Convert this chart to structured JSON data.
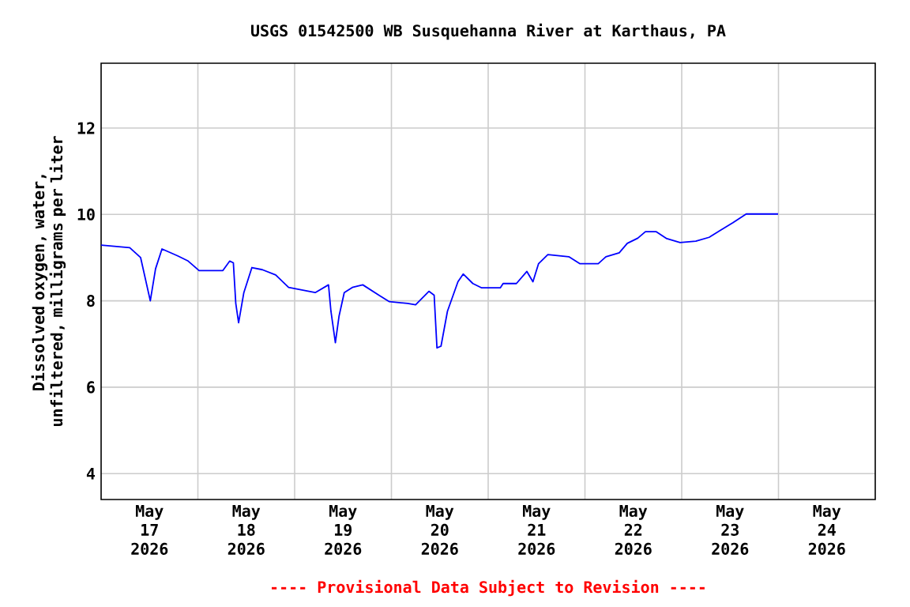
{
  "chart_data": {
    "type": "line",
    "title": "USGS 01542500 WB Susquehanna River at Karthaus, PA",
    "ylabel": "Dissolved oxygen, water, unfiltered, milligrams per liter",
    "annotations": [
      "---- Provisional Data Subject to Revision ----"
    ],
    "x": [
      "2026-05-17T00:00",
      "2026-05-17T07:06",
      "2026-05-17T09:48",
      "2026-05-17T12:12",
      "2026-05-17T13:30",
      "2026-05-17T15:06",
      "2026-05-17T19:00",
      "2026-05-17T21:36",
      "2026-05-18T00:18",
      "2026-05-18T06:12",
      "2026-05-18T07:54",
      "2026-05-18T08:48",
      "2026-05-18T09:24",
      "2026-05-18T10:06",
      "2026-05-18T11:24",
      "2026-05-18T13:24",
      "2026-05-18T16:00",
      "2026-05-18T19:18",
      "2026-05-18T22:30",
      "2026-05-19T05:06",
      "2026-05-19T08:24",
      "2026-05-19T09:00",
      "2026-05-19T10:06",
      "2026-05-19T11:00",
      "2026-05-19T12:18",
      "2026-05-19T14:18",
      "2026-05-19T16:54",
      "2026-05-19T20:54",
      "2026-05-19T23:30",
      "2026-05-20T04:00",
      "2026-05-20T06:00",
      "2026-05-20T09:18",
      "2026-05-20T10:36",
      "2026-05-20T11:18",
      "2026-05-20T12:18",
      "2026-05-20T13:54",
      "2026-05-20T16:30",
      "2026-05-20T17:48",
      "2026-05-20T20:12",
      "2026-05-20T22:24",
      "2026-05-21T03:00",
      "2026-05-21T03:42",
      "2026-05-21T07:00",
      "2026-05-21T09:36",
      "2026-05-21T11:06",
      "2026-05-21T12:30",
      "2026-05-21T14:48",
      "2026-05-21T20:00",
      "2026-05-21T22:42",
      "2026-05-22T03:18",
      "2026-05-22T05:12",
      "2026-05-22T08:30",
      "2026-05-22T10:30",
      "2026-05-22T13:06",
      "2026-05-22T15:00",
      "2026-05-22T17:42",
      "2026-05-22T20:18",
      "2026-05-22T23:36",
      "2026-05-23T03:30",
      "2026-05-23T06:48",
      "2026-05-23T09:24",
      "2026-05-23T12:42",
      "2026-05-23T16:00",
      "2026-05-23T23:54"
    ],
    "values": [
      9.29,
      9.23,
      9.0,
      8.0,
      8.74,
      9.2,
      9.04,
      8.92,
      8.7,
      8.7,
      8.92,
      8.88,
      7.94,
      7.49,
      8.19,
      8.77,
      8.72,
      8.6,
      8.31,
      8.19,
      8.37,
      7.76,
      7.03,
      7.64,
      8.19,
      8.31,
      8.37,
      8.13,
      7.98,
      7.94,
      7.91,
      8.22,
      8.13,
      6.91,
      6.95,
      7.76,
      8.44,
      8.62,
      8.4,
      8.3,
      8.3,
      8.4,
      8.4,
      8.68,
      8.44,
      8.86,
      9.07,
      9.02,
      8.86,
      8.86,
      9.02,
      9.11,
      9.33,
      9.45,
      9.6,
      9.6,
      9.44,
      9.35,
      9.38,
      9.47,
      9.62,
      9.81,
      10.01,
      10.01
    ],
    "color": "#0000ff",
    "xlim": [
      "2026-05-17T00:00",
      "2026-05-25T00:00"
    ],
    "xticks": [
      {
        "value": "2026-05-17T12:00",
        "label": "May 17 2026"
      },
      {
        "value": "2026-05-18T12:00",
        "label": "May 18 2026"
      },
      {
        "value": "2026-05-19T12:00",
        "label": "May 19 2026"
      },
      {
        "value": "2026-05-20T12:00",
        "label": "May 20 2026"
      },
      {
        "value": "2026-05-21T12:00",
        "label": "May 21 2026"
      },
      {
        "value": "2026-05-22T12:00",
        "label": "May 22 2026"
      },
      {
        "value": "2026-05-23T12:00",
        "label": "May 23 2026"
      },
      {
        "value": "2026-05-24T12:00",
        "label": "May 24 2026"
      },
      {
        "value": "2026-05-18T00:00",
        "label": null
      },
      {
        "value": "2026-05-19T00:00",
        "label": null
      },
      {
        "value": "2026-05-20T00:00",
        "label": null
      },
      {
        "value": "2026-05-21T00:00",
        "label": null
      },
      {
        "value": "2026-05-22T00:00",
        "label": null
      },
      {
        "value": "2026-05-23T00:00",
        "label": null
      },
      {
        "value": "2026-05-24T00:00",
        "label": null
      }
    ],
    "ylim": [
      3.4,
      13.5
    ],
    "yticks": [
      4,
      6,
      8,
      10,
      12
    ],
    "grid": true,
    "marker": "none",
    "line_style": "solid"
  }
}
